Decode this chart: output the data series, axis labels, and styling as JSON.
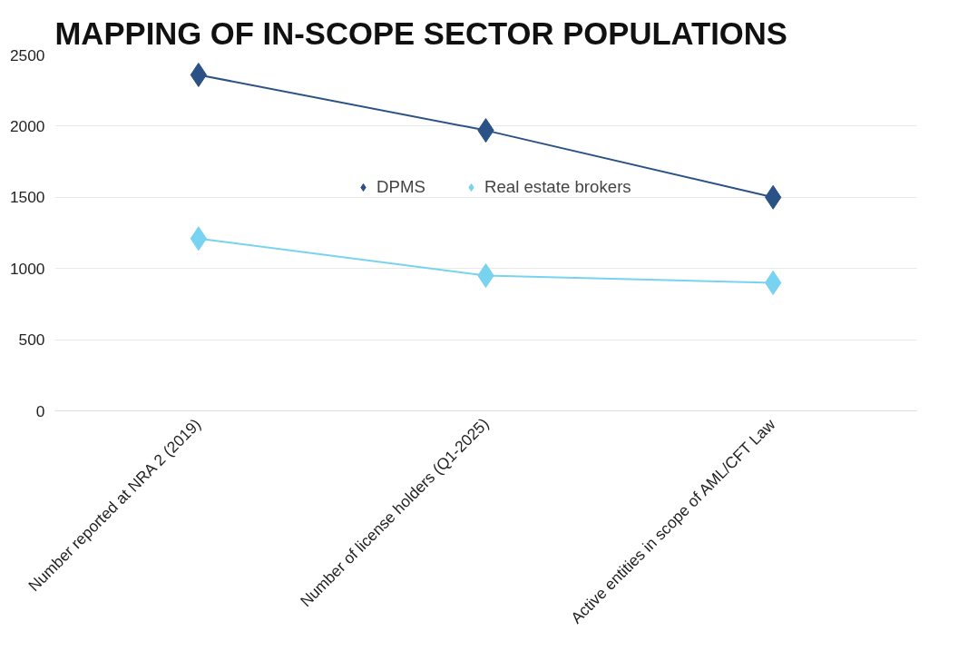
{
  "chart_data": {
    "type": "line",
    "title": "MAPPING OF IN-SCOPE SECTOR POPULATIONS",
    "categories": [
      "Number reported at NRA 2 (2019)",
      "Number of license holders (Q1-2025)",
      "Active entities in scope of AML/CFT Law"
    ],
    "series": [
      {
        "name": "DPMS",
        "color": "#2b5286",
        "values": [
          2360,
          1970,
          1500
        ]
      },
      {
        "name": "Real estate brokers",
        "color": "#78d3f0",
        "values": [
          1210,
          950,
          900
        ]
      }
    ],
    "ylim": [
      0,
      2500
    ],
    "yticks": [
      0,
      500,
      1000,
      1500,
      2000,
      2500
    ],
    "grid": "y",
    "legend": "top",
    "marker": "diamond",
    "line_style": "solid"
  }
}
